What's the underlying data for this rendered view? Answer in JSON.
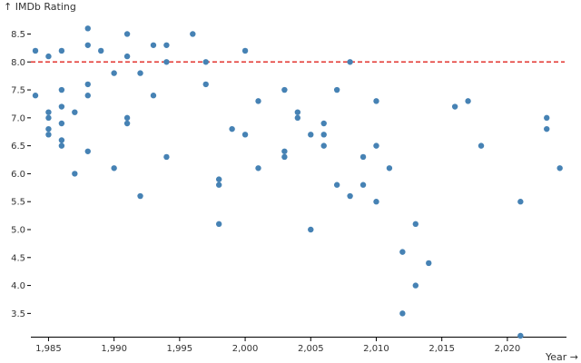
{
  "chart_data": {
    "type": "scatter",
    "title": "",
    "xlabel": "Year →",
    "ylabel": "↑ IMDb Rating",
    "xlim": [
      1984,
      2024.3
    ],
    "ylim": [
      3.1,
      8.8
    ],
    "x_ticks": [
      1985,
      1990,
      1995,
      2000,
      2005,
      2010,
      2015,
      2020
    ],
    "x_tick_labels": [
      "1,985",
      "1,990",
      "1,995",
      "2,000",
      "2,005",
      "2,010",
      "2,015",
      "2,020"
    ],
    "y_ticks": [
      3.5,
      4.0,
      4.5,
      5.0,
      5.5,
      6.0,
      6.5,
      7.0,
      7.5,
      8.0,
      8.5
    ],
    "y_tick_labels": [
      "3.5",
      "4.0",
      "4.5",
      "5.0",
      "5.5",
      "6.0",
      "6.5",
      "7.0",
      "7.5",
      "8.0",
      "8.5"
    ],
    "reference_line": {
      "y": 8.0,
      "style": "dashed",
      "color": "#e3342f"
    },
    "grid": false,
    "point_color": "#4682b4",
    "points": [
      {
        "x": 1984,
        "y": 8.2
      },
      {
        "x": 1984,
        "y": 7.4
      },
      {
        "x": 1985,
        "y": 8.1
      },
      {
        "x": 1985,
        "y": 7.1
      },
      {
        "x": 1985,
        "y": 7.0
      },
      {
        "x": 1985,
        "y": 6.8
      },
      {
        "x": 1985,
        "y": 6.7
      },
      {
        "x": 1986,
        "y": 8.2
      },
      {
        "x": 1986,
        "y": 7.5
      },
      {
        "x": 1986,
        "y": 7.2
      },
      {
        "x": 1986,
        "y": 6.9
      },
      {
        "x": 1986,
        "y": 6.6
      },
      {
        "x": 1986,
        "y": 6.5
      },
      {
        "x": 1987,
        "y": 7.1
      },
      {
        "x": 1987,
        "y": 6.0
      },
      {
        "x": 1988,
        "y": 8.6
      },
      {
        "x": 1988,
        "y": 8.3
      },
      {
        "x": 1988,
        "y": 7.6
      },
      {
        "x": 1988,
        "y": 7.4
      },
      {
        "x": 1988,
        "y": 6.4
      },
      {
        "x": 1989,
        "y": 8.2
      },
      {
        "x": 1990,
        "y": 7.8
      },
      {
        "x": 1990,
        "y": 6.1
      },
      {
        "x": 1991,
        "y": 8.5
      },
      {
        "x": 1991,
        "y": 8.1
      },
      {
        "x": 1991,
        "y": 7.0
      },
      {
        "x": 1991,
        "y": 6.9
      },
      {
        "x": 1992,
        "y": 7.8
      },
      {
        "x": 1992,
        "y": 5.6
      },
      {
        "x": 1993,
        "y": 8.3
      },
      {
        "x": 1993,
        "y": 7.4
      },
      {
        "x": 1994,
        "y": 8.3
      },
      {
        "x": 1994,
        "y": 8.0
      },
      {
        "x": 1994,
        "y": 6.3
      },
      {
        "x": 1996,
        "y": 8.5
      },
      {
        "x": 1997,
        "y": 8.0
      },
      {
        "x": 1997,
        "y": 7.6
      },
      {
        "x": 1998,
        "y": 5.9
      },
      {
        "x": 1998,
        "y": 5.8
      },
      {
        "x": 1998,
        "y": 5.1
      },
      {
        "x": 1999,
        "y": 6.8
      },
      {
        "x": 2000,
        "y": 8.2
      },
      {
        "x": 2000,
        "y": 6.7
      },
      {
        "x": 2001,
        "y": 7.3
      },
      {
        "x": 2001,
        "y": 6.1
      },
      {
        "x": 2003,
        "y": 7.5
      },
      {
        "x": 2003,
        "y": 6.4
      },
      {
        "x": 2003,
        "y": 6.3
      },
      {
        "x": 2004,
        "y": 7.1
      },
      {
        "x": 2004,
        "y": 7.0
      },
      {
        "x": 2005,
        "y": 6.7
      },
      {
        "x": 2005,
        "y": 5.0
      },
      {
        "x": 2006,
        "y": 6.9
      },
      {
        "x": 2006,
        "y": 6.7
      },
      {
        "x": 2006,
        "y": 6.5
      },
      {
        "x": 2007,
        "y": 7.5
      },
      {
        "x": 2007,
        "y": 5.8
      },
      {
        "x": 2008,
        "y": 8.0
      },
      {
        "x": 2008,
        "y": 5.6
      },
      {
        "x": 2009,
        "y": 6.3
      },
      {
        "x": 2009,
        "y": 5.8
      },
      {
        "x": 2010,
        "y": 7.3
      },
      {
        "x": 2010,
        "y": 6.5
      },
      {
        "x": 2010,
        "y": 5.5
      },
      {
        "x": 2011,
        "y": 6.1
      },
      {
        "x": 2012,
        "y": 4.6
      },
      {
        "x": 2012,
        "y": 3.5
      },
      {
        "x": 2013,
        "y": 5.1
      },
      {
        "x": 2013,
        "y": 4.0
      },
      {
        "x": 2014,
        "y": 4.4
      },
      {
        "x": 2016,
        "y": 7.2
      },
      {
        "x": 2017,
        "y": 7.3
      },
      {
        "x": 2018,
        "y": 6.5
      },
      {
        "x": 2021,
        "y": 5.5
      },
      {
        "x": 2021,
        "y": 3.1
      },
      {
        "x": 2023,
        "y": 7.0
      },
      {
        "x": 2023,
        "y": 6.8
      },
      {
        "x": 2024,
        "y": 6.1
      }
    ]
  }
}
